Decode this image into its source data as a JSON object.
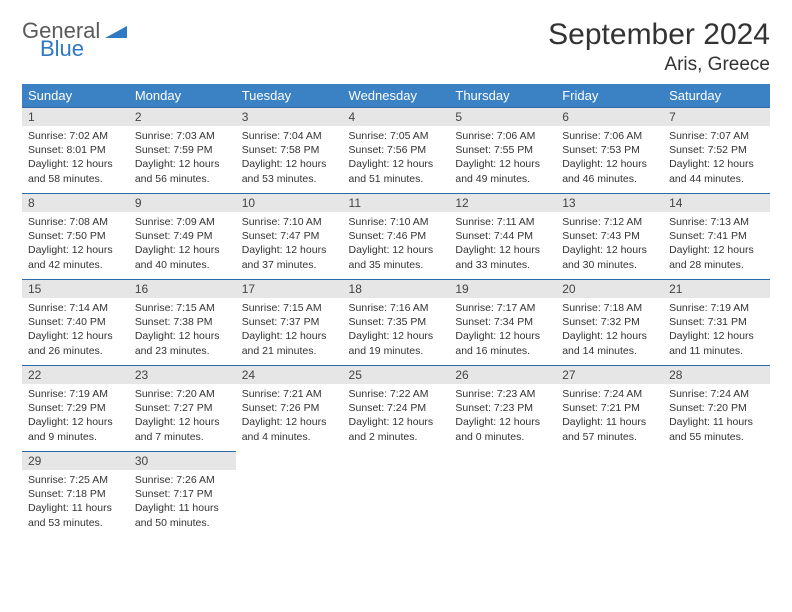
{
  "brand": {
    "line1": "General",
    "line2": "Blue"
  },
  "title": "September 2024",
  "location": "Aris, Greece",
  "colors": {
    "header_bg": "#3b82c4",
    "header_text": "#ffffff",
    "daynum_bg": "#e6e6e6",
    "rule": "#2f6aa8",
    "brand_blue": "#2f78c4",
    "brand_gray": "#5a5a5a"
  },
  "day_headers": [
    "Sunday",
    "Monday",
    "Tuesday",
    "Wednesday",
    "Thursday",
    "Friday",
    "Saturday"
  ],
  "weeks": [
    [
      {
        "n": "1",
        "sr": "7:02 AM",
        "ss": "8:01 PM",
        "dl": "12 hours and 58 minutes."
      },
      {
        "n": "2",
        "sr": "7:03 AM",
        "ss": "7:59 PM",
        "dl": "12 hours and 56 minutes."
      },
      {
        "n": "3",
        "sr": "7:04 AM",
        "ss": "7:58 PM",
        "dl": "12 hours and 53 minutes."
      },
      {
        "n": "4",
        "sr": "7:05 AM",
        "ss": "7:56 PM",
        "dl": "12 hours and 51 minutes."
      },
      {
        "n": "5",
        "sr": "7:06 AM",
        "ss": "7:55 PM",
        "dl": "12 hours and 49 minutes."
      },
      {
        "n": "6",
        "sr": "7:06 AM",
        "ss": "7:53 PM",
        "dl": "12 hours and 46 minutes."
      },
      {
        "n": "7",
        "sr": "7:07 AM",
        "ss": "7:52 PM",
        "dl": "12 hours and 44 minutes."
      }
    ],
    [
      {
        "n": "8",
        "sr": "7:08 AM",
        "ss": "7:50 PM",
        "dl": "12 hours and 42 minutes."
      },
      {
        "n": "9",
        "sr": "7:09 AM",
        "ss": "7:49 PM",
        "dl": "12 hours and 40 minutes."
      },
      {
        "n": "10",
        "sr": "7:10 AM",
        "ss": "7:47 PM",
        "dl": "12 hours and 37 minutes."
      },
      {
        "n": "11",
        "sr": "7:10 AM",
        "ss": "7:46 PM",
        "dl": "12 hours and 35 minutes."
      },
      {
        "n": "12",
        "sr": "7:11 AM",
        "ss": "7:44 PM",
        "dl": "12 hours and 33 minutes."
      },
      {
        "n": "13",
        "sr": "7:12 AM",
        "ss": "7:43 PM",
        "dl": "12 hours and 30 minutes."
      },
      {
        "n": "14",
        "sr": "7:13 AM",
        "ss": "7:41 PM",
        "dl": "12 hours and 28 minutes."
      }
    ],
    [
      {
        "n": "15",
        "sr": "7:14 AM",
        "ss": "7:40 PM",
        "dl": "12 hours and 26 minutes."
      },
      {
        "n": "16",
        "sr": "7:15 AM",
        "ss": "7:38 PM",
        "dl": "12 hours and 23 minutes."
      },
      {
        "n": "17",
        "sr": "7:15 AM",
        "ss": "7:37 PM",
        "dl": "12 hours and 21 minutes."
      },
      {
        "n": "18",
        "sr": "7:16 AM",
        "ss": "7:35 PM",
        "dl": "12 hours and 19 minutes."
      },
      {
        "n": "19",
        "sr": "7:17 AM",
        "ss": "7:34 PM",
        "dl": "12 hours and 16 minutes."
      },
      {
        "n": "20",
        "sr": "7:18 AM",
        "ss": "7:32 PM",
        "dl": "12 hours and 14 minutes."
      },
      {
        "n": "21",
        "sr": "7:19 AM",
        "ss": "7:31 PM",
        "dl": "12 hours and 11 minutes."
      }
    ],
    [
      {
        "n": "22",
        "sr": "7:19 AM",
        "ss": "7:29 PM",
        "dl": "12 hours and 9 minutes."
      },
      {
        "n": "23",
        "sr": "7:20 AM",
        "ss": "7:27 PM",
        "dl": "12 hours and 7 minutes."
      },
      {
        "n": "24",
        "sr": "7:21 AM",
        "ss": "7:26 PM",
        "dl": "12 hours and 4 minutes."
      },
      {
        "n": "25",
        "sr": "7:22 AM",
        "ss": "7:24 PM",
        "dl": "12 hours and 2 minutes."
      },
      {
        "n": "26",
        "sr": "7:23 AM",
        "ss": "7:23 PM",
        "dl": "12 hours and 0 minutes."
      },
      {
        "n": "27",
        "sr": "7:24 AM",
        "ss": "7:21 PM",
        "dl": "11 hours and 57 minutes."
      },
      {
        "n": "28",
        "sr": "7:24 AM",
        "ss": "7:20 PM",
        "dl": "11 hours and 55 minutes."
      }
    ],
    [
      {
        "n": "29",
        "sr": "7:25 AM",
        "ss": "7:18 PM",
        "dl": "11 hours and 53 minutes."
      },
      {
        "n": "30",
        "sr": "7:26 AM",
        "ss": "7:17 PM",
        "dl": "11 hours and 50 minutes."
      },
      null,
      null,
      null,
      null,
      null
    ]
  ],
  "labels": {
    "sunrise": "Sunrise:",
    "sunset": "Sunset:",
    "daylight": "Daylight:"
  }
}
